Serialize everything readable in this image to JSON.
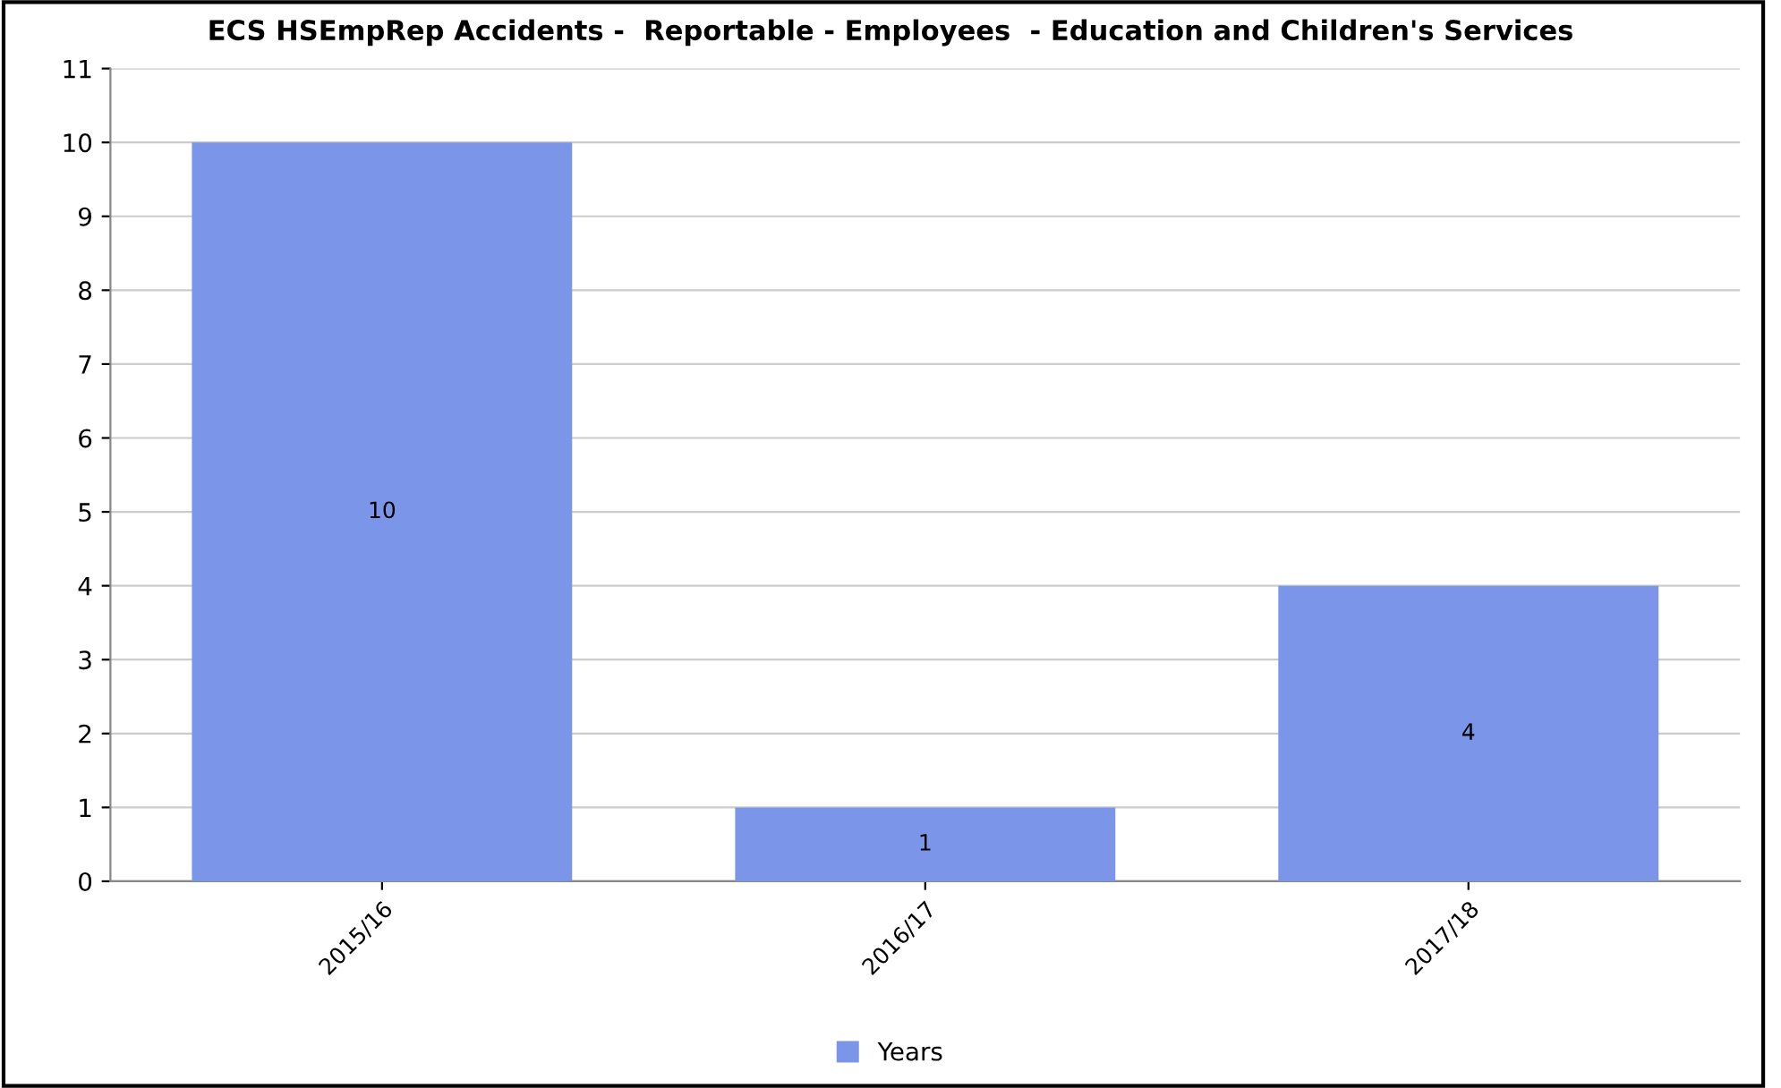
{
  "chart_data": {
    "type": "bar",
    "title": "ECS HSEmpRep Accidents -  Reportable - Employees  - Education and Children's Services",
    "categories": [
      "2015/16",
      "2016/17",
      "2017/18"
    ],
    "series": [
      {
        "name": "Years",
        "color": "#7b96e8",
        "values": [
          10,
          1,
          4
        ]
      }
    ],
    "ylim": [
      0,
      11
    ],
    "yticks": [
      0,
      1,
      2,
      3,
      4,
      5,
      6,
      7,
      8,
      9,
      10,
      11
    ],
    "grid": "y",
    "legend": "bottom",
    "data_labels": true
  }
}
